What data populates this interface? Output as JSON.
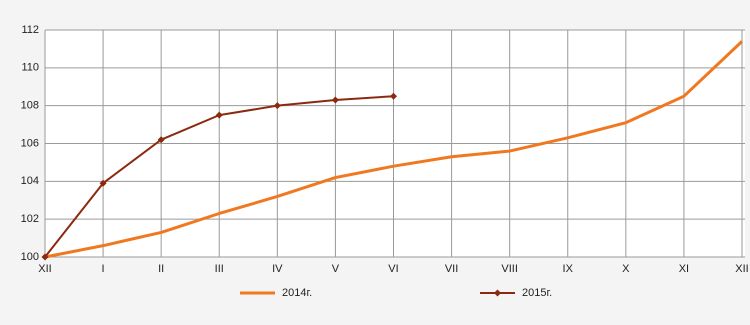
{
  "chart_data": {
    "type": "line",
    "categories": [
      "XII",
      "I",
      "II",
      "III",
      "IV",
      "V",
      "VI",
      "VII",
      "VIII",
      "IX",
      "X",
      "XI",
      "XII"
    ],
    "series": [
      {
        "name": "2014г.",
        "color": "#f07820",
        "values": [
          100,
          100.6,
          101.3,
          102.3,
          103.2,
          104.2,
          104.8,
          105.3,
          105.6,
          106.3,
          107.1,
          108.5,
          111.4
        ]
      },
      {
        "name": "2015г.",
        "color": "#8b2a0e",
        "marker": "diamond",
        "values": [
          100,
          103.9,
          106.2,
          107.5,
          108.0,
          108.3,
          108.5,
          null,
          null,
          null,
          null,
          null,
          null
        ]
      }
    ],
    "ylim": [
      100,
      112
    ],
    "yticks": [
      100,
      102,
      104,
      106,
      108,
      110,
      112
    ],
    "grid": true,
    "legend": "bottom"
  }
}
